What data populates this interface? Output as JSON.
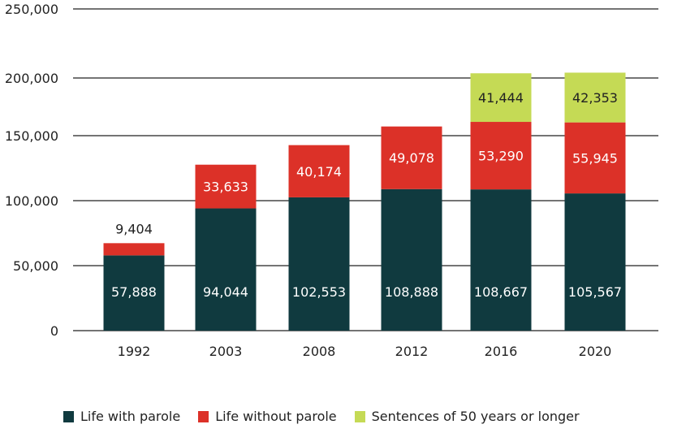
{
  "chart_data": {
    "type": "bar",
    "stacked": true,
    "title": "",
    "xlabel": "",
    "ylabel": "",
    "categories": [
      "1992",
      "2003",
      "2008",
      "2012",
      "2016",
      "2020"
    ],
    "series": [
      {
        "name": "Life with parole",
        "color": "#103a3f",
        "label_color": "#ffffff",
        "values": [
          57888,
          94044,
          102553,
          108888,
          108667,
          105567
        ],
        "labels": [
          "57,888",
          "94,044",
          "102,553",
          "108,888",
          "108,667",
          "105,567"
        ]
      },
      {
        "name": "Life without parole",
        "color": "#dc3128",
        "label_color": "#ffffff",
        "values": [
          9404,
          33633,
          40174,
          49078,
          53290,
          55945
        ],
        "labels": [
          "9,404",
          "33,633",
          "40,174",
          "49,078",
          "53,290",
          "55,945"
        ]
      },
      {
        "name": "Sentences of 50 years or longer",
        "color": "#c5da55",
        "label_color": "#222222",
        "values": [
          null,
          null,
          null,
          null,
          41444,
          42353
        ],
        "labels": [
          "",
          "",
          "",
          "",
          "41,444",
          "42,353"
        ]
      }
    ],
    "ylim": [
      0,
      250000
    ],
    "yticks": [
      0,
      50000,
      100000,
      150000,
      200000,
      250000
    ],
    "ytick_labels": [
      "0",
      "50,000",
      "100,000",
      "150,000",
      "200,000",
      "250,000"
    ],
    "grid": true,
    "legend_position": "bottom"
  }
}
